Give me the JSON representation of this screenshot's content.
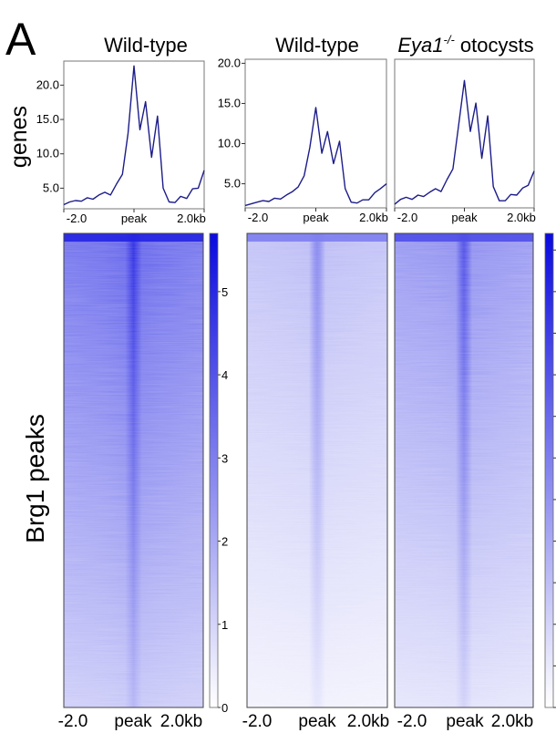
{
  "panel_letter": "A",
  "row_labels": {
    "profile": "genes",
    "heatmap": "Brg1 peaks"
  },
  "colors": {
    "signal": "#1a1ad8",
    "profile_line": "#1c1c8a",
    "background": "#ffffff"
  },
  "chart_data": [
    {
      "type": "line",
      "title": "Wild-type",
      "x_ticks": [
        "-2.0",
        "peak",
        "2.0kb"
      ],
      "xlim": [
        -2.0,
        2.0
      ],
      "ylim": [
        2.0,
        23.5
      ],
      "y_ticks": [
        "5.0",
        "10.0",
        "15.0",
        "20.0"
      ],
      "x": [
        -2.0,
        -1.83,
        -1.67,
        -1.5,
        -1.33,
        -1.17,
        -1.0,
        -0.83,
        -0.67,
        -0.5,
        -0.33,
        -0.17,
        0.0,
        0.17,
        0.33,
        0.5,
        0.67,
        0.83,
        1.0,
        1.17,
        1.33,
        1.5,
        1.67,
        1.83,
        2.0
      ],
      "values": [
        2.6,
        3.0,
        3.2,
        3.1,
        3.6,
        3.4,
        4.0,
        4.4,
        4.0,
        5.6,
        7.0,
        13.0,
        22.8,
        13.5,
        17.6,
        9.5,
        15.5,
        5.0,
        3.0,
        2.9,
        3.8,
        3.5,
        4.9,
        5.0,
        7.6
      ]
    },
    {
      "type": "line",
      "title": "Wild-type",
      "x_ticks": [
        "-2.0",
        "peak",
        "2.0kb"
      ],
      "xlim": [
        -2.0,
        2.0
      ],
      "ylim": [
        2.0,
        20.5
      ],
      "y_ticks": [
        "5.0",
        "10.0",
        "15.0",
        "20.0"
      ],
      "x": [
        -2.0,
        -1.83,
        -1.67,
        -1.5,
        -1.33,
        -1.17,
        -1.0,
        -0.83,
        -0.67,
        -0.5,
        -0.33,
        -0.17,
        0.0,
        0.17,
        0.33,
        0.5,
        0.67,
        0.83,
        1.0,
        1.17,
        1.33,
        1.5,
        1.67,
        1.83,
        2.0
      ],
      "values": [
        2.3,
        2.5,
        2.7,
        2.9,
        2.8,
        3.2,
        3.1,
        3.6,
        4.0,
        4.6,
        6.0,
        9.5,
        14.5,
        8.8,
        11.5,
        7.5,
        10.3,
        4.4,
        2.7,
        2.6,
        3.0,
        3.0,
        3.9,
        4.4,
        5.0
      ]
    },
    {
      "type": "line",
      "title": "Eya1",
      "title_sup": "-/-",
      "title_suffix": " otocysts",
      "x_ticks": [
        "-2.0",
        "peak",
        "2.0kb"
      ],
      "xlim": [
        -2.0,
        2.0
      ],
      "ylim": [
        2.0,
        23.0
      ],
      "x": [
        -2.0,
        -1.83,
        -1.67,
        -1.5,
        -1.33,
        -1.17,
        -1.0,
        -0.83,
        -0.67,
        -0.5,
        -0.33,
        -0.17,
        0.0,
        0.17,
        0.33,
        0.5,
        0.67,
        0.83,
        1.0,
        1.17,
        1.33,
        1.5,
        1.67,
        1.83,
        2.0
      ],
      "values": [
        2.5,
        3.2,
        3.5,
        3.2,
        3.8,
        3.6,
        4.2,
        4.7,
        4.3,
        6.0,
        7.5,
        13.5,
        20.0,
        12.8,
        16.8,
        9.0,
        15.0,
        5.0,
        3.0,
        3.0,
        3.9,
        3.8,
        4.8,
        5.2,
        7.2
      ]
    },
    {
      "type": "heatmap",
      "x_ticks": [
        "-2.0",
        "peak",
        "2.0kb"
      ],
      "colorbar_ticks": [
        "0",
        "1",
        "2",
        "3",
        "4",
        "5"
      ],
      "colorbar_range": [
        0,
        5.7
      ],
      "intensity_top": 0.68,
      "intensity_bottom": 0.22,
      "peak_intensity": 0.95
    },
    {
      "type": "heatmap",
      "x_ticks": [
        "-2.0",
        "peak",
        "2.0kb"
      ],
      "intensity_top": 0.3,
      "intensity_bottom": 0.04,
      "peak_intensity": 0.55
    },
    {
      "type": "heatmap",
      "x_ticks": [
        "-2.0",
        "peak",
        "2.0kb"
      ],
      "colorbar_range": [
        0,
        5.7
      ],
      "intensity_top": 0.5,
      "intensity_bottom": 0.06,
      "peak_intensity": 0.8
    }
  ]
}
